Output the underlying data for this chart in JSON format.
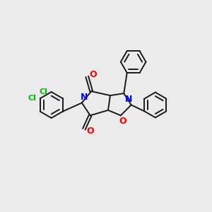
{
  "background_color": "#ebebeb",
  "bond_color": "#1a1a1a",
  "N_color": "#0000ff",
  "O_color": "#ff0000",
  "Cl_color": "#00bb00",
  "lw": 1.4,
  "figsize": [
    3.0,
    3.0
  ],
  "dpi": 100,
  "xlim": [
    0,
    10
  ],
  "ylim": [
    0,
    10
  ]
}
